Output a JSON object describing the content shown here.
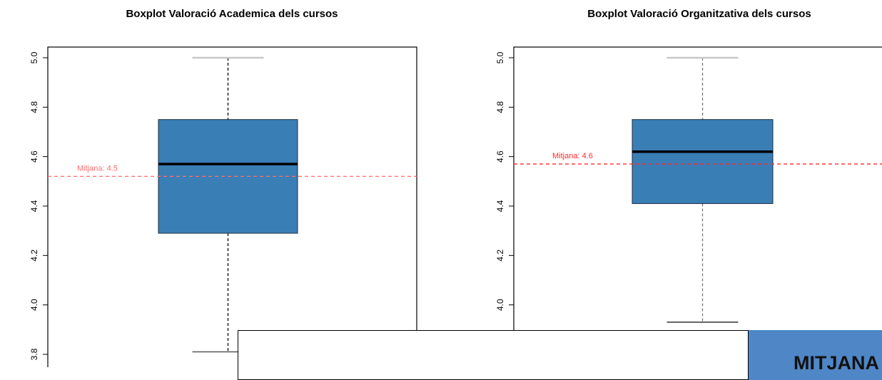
{
  "chart_data": [
    {
      "type": "boxplot",
      "title": "Boxplot Valoració Academica dels cursos",
      "ylim": [
        3.78,
        5.05
      ],
      "y_ticks": [
        "3.8",
        "4.0",
        "4.2",
        "4.4",
        "4.6",
        "4.8",
        "5.0"
      ],
      "y_tick_values": [
        3.8,
        4.0,
        4.2,
        4.4,
        4.6,
        4.8,
        5.0
      ],
      "box": {
        "whisker_low": 3.81,
        "q1": 4.29,
        "median": 4.57,
        "q3": 4.75,
        "whisker_high": 5.0
      },
      "mean_line": {
        "value": 4.52,
        "label": "Mitjana: 4.5",
        "color": "#ff6f6f",
        "style": "dashed"
      },
      "box_color": "#3a7eb6",
      "whisker_style": "dashed-black",
      "cap_color_high": "#c8c8c8",
      "cap_color_low": "#555555"
    },
    {
      "type": "boxplot",
      "title": "Boxplot Valoració Organitzativa dels cursos",
      "ylim": [
        3.78,
        5.05
      ],
      "y_ticks": [
        "3.8",
        "4.0",
        "4.2",
        "4.4",
        "4.6",
        "4.8",
        "5.0"
      ],
      "y_tick_values": [
        3.8,
        4.0,
        4.2,
        4.4,
        4.6,
        4.8,
        5.0
      ],
      "box": {
        "whisker_low": 3.93,
        "q1": 4.41,
        "median": 4.62,
        "q3": 4.75,
        "whisker_high": 5.0
      },
      "mean_line": {
        "value": 4.57,
        "label": "Mitjana: 4.6",
        "color": "#ff2a2a",
        "style": "dashed"
      },
      "box_color": "#3a7eb6",
      "whisker_style": "dashed-gray",
      "cap_color_high": "#c8c8c8",
      "cap_color_low": "#333333"
    }
  ],
  "overlay": {
    "label": "MITJANA"
  }
}
